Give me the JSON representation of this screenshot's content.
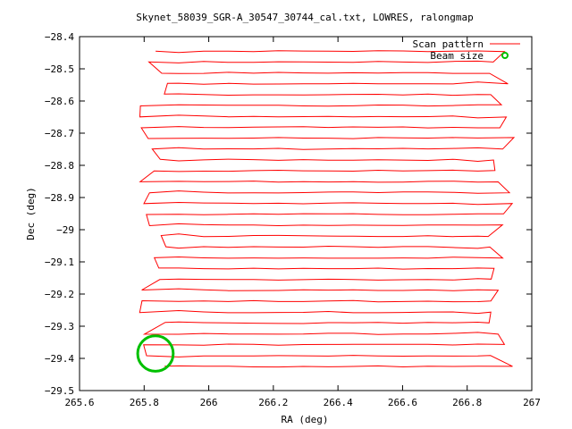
{
  "chart_data": {
    "type": "line",
    "title": "Skynet_58039_SGR-A_30547_30744_cal.txt, LOWRES, ralongmap",
    "xlabel": "RA (deg)",
    "ylabel": "Dec (deg)",
    "xlim": [
      265.6,
      267.0
    ],
    "ylim": [
      -29.5,
      -28.4
    ],
    "xticks": [
      "265.6",
      "265.8",
      "266",
      "266.2",
      "266.4",
      "266.6",
      "266.8",
      "267"
    ],
    "yticks": [
      "-28.4",
      "-28.5",
      "-28.6",
      "-28.7",
      "-28.8",
      "-28.9",
      "-29",
      "-29.1",
      "-29.2",
      "-29.3",
      "-29.4",
      "-29.5"
    ],
    "grid": false,
    "legend_position": "top-right",
    "series": [
      {
        "name": "Scan pattern",
        "color": "#ff0000",
        "kind": "raster-scan",
        "ra_start": 265.83,
        "ra_end": 266.91,
        "dec_top": -28.445,
        "dec_bottom": -29.425,
        "row_count": 30,
        "direction": "alternating"
      },
      {
        "name": "Beam size",
        "color": "#00c000",
        "kind": "circle",
        "center": [
          265.835,
          -29.385
        ],
        "diameter_deg": 0.11
      }
    ]
  }
}
